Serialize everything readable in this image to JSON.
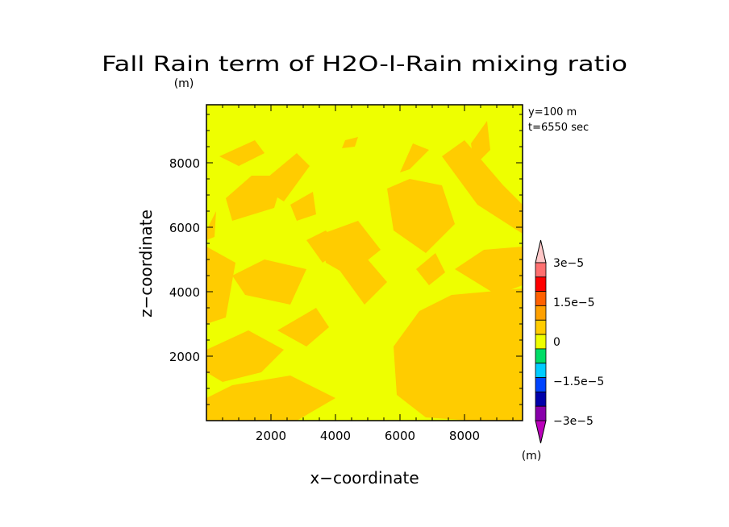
{
  "chart_data": {
    "type": "heatmap",
    "title": "Fall Rain term of H2O-l-Rain mixing ratio",
    "title_unit": "(m)",
    "annotations": [
      "y=100 m",
      "t=6550 sec"
    ],
    "xlabel": "x−coordinate",
    "ylabel": "z−coordinate",
    "xlim": [
      0,
      9800
    ],
    "ylim": [
      0,
      9800
    ],
    "x_ticks": [
      2000,
      4000,
      6000,
      8000
    ],
    "y_ticks": [
      2000,
      4000,
      6000,
      8000
    ],
    "colorbar": {
      "labels": [
        "3e−5",
        "1.5e−5",
        "0",
        "−1.5e−5",
        "−3e−5"
      ],
      "label_values": [
        3e-05,
        1.5e-05,
        0,
        -1.5e-05,
        -3e-05
      ],
      "unit": "(m)",
      "colors": [
        "#ff7070",
        "#ff0000",
        "#ff6000",
        "#ffa000",
        "#ffcc00",
        "#eeff00",
        "#00dd66",
        "#00ccff",
        "#0044ff",
        "#0000aa",
        "#8800aa"
      ],
      "top_arrow_color": "#ffc8c8",
      "bottom_arrow_color": "#bb00bb"
    },
    "series": [
      {
        "level_color": "#eeff00",
        "region": "background near-zero field"
      },
      {
        "level_color": "#ffcc00",
        "region": "positive patches (0 to 7.5e-6)"
      }
    ],
    "patches": [
      {
        "x": [
          400,
          1500,
          1800,
          1000
        ],
        "z": [
          8200,
          8700,
          8300,
          7900
        ]
      },
      {
        "x": [
          600,
          1400,
          2400,
          2100,
          800
        ],
        "z": [
          6900,
          7600,
          7600,
          6600,
          6200
        ]
      },
      {
        "x": [
          1600,
          2800,
          3200,
          2400
        ],
        "z": [
          7300,
          8300,
          7900,
          6800
        ]
      },
      {
        "x": [
          2600,
          3300,
          3400,
          2800
        ],
        "z": [
          6700,
          7100,
          6400,
          6200
        ]
      },
      {
        "x": [
          3600,
          4700,
          5400,
          4400,
          3700
        ],
        "z": [
          5800,
          6200,
          5300,
          4500,
          4900
        ]
      },
      {
        "x": [
          4100,
          5000,
          5600,
          4900
        ],
        "z": [
          4700,
          5000,
          4300,
          3600
        ]
      },
      {
        "x": [
          5600,
          6300,
          7300,
          7700,
          6800,
          5800
        ],
        "z": [
          7200,
          7500,
          7300,
          6100,
          5200,
          5900
        ]
      },
      {
        "x": [
          7300,
          8000,
          9200,
          9800,
          9800,
          8400
        ],
        "z": [
          8200,
          8700,
          7300,
          6700,
          5800,
          6700
        ]
      },
      {
        "x": [
          6000,
          6400,
          6900,
          6300
        ],
        "z": [
          7700,
          8600,
          8400,
          7800
        ]
      },
      {
        "x": [
          8200,
          8700,
          8800,
          8300
        ],
        "z": [
          8600,
          9300,
          8400,
          7900
        ]
      },
      {
        "x": [
          0,
          900,
          600,
          0
        ],
        "z": [
          5400,
          4900,
          3200,
          3000
        ]
      },
      {
        "x": [
          800,
          1800,
          3100,
          2600,
          1200
        ],
        "z": [
          4500,
          5000,
          4700,
          3600,
          3900
        ]
      },
      {
        "x": [
          0,
          1300,
          2400,
          1700,
          500,
          0
        ],
        "z": [
          2200,
          2800,
          2200,
          1500,
          1200,
          1500
        ]
      },
      {
        "x": [
          0,
          800,
          2600,
          4000,
          2800,
          700,
          0
        ],
        "z": [
          700,
          1100,
          1400,
          700,
          0,
          0,
          0
        ]
      },
      {
        "x": [
          2200,
          3400,
          3800,
          3100
        ],
        "z": [
          2800,
          3500,
          2900,
          2300
        ]
      },
      {
        "x": [
          5800,
          6600,
          7600,
          9800,
          9800,
          8200,
          6800,
          5900
        ],
        "z": [
          2300,
          3400,
          3900,
          4100,
          0,
          0,
          100,
          800
        ]
      },
      {
        "x": [
          7700,
          8600,
          9800,
          9800,
          9000
        ],
        "z": [
          4700,
          5300,
          5400,
          4200,
          3900
        ]
      },
      {
        "x": [
          6500,
          7100,
          7400,
          6900
        ],
        "z": [
          4700,
          5200,
          4600,
          4200
        ]
      },
      {
        "x": [
          3100,
          3700,
          4200,
          3600
        ],
        "z": [
          5600,
          5900,
          5300,
          4900
        ]
      },
      {
        "x": [
          0,
          300,
          250,
          0
        ],
        "z": [
          5900,
          6500,
          5700,
          5600
        ]
      },
      {
        "x": [
          4300,
          4700,
          4600,
          4200
        ],
        "z": [
          8700,
          8800,
          8500,
          8450
        ]
      }
    ]
  }
}
